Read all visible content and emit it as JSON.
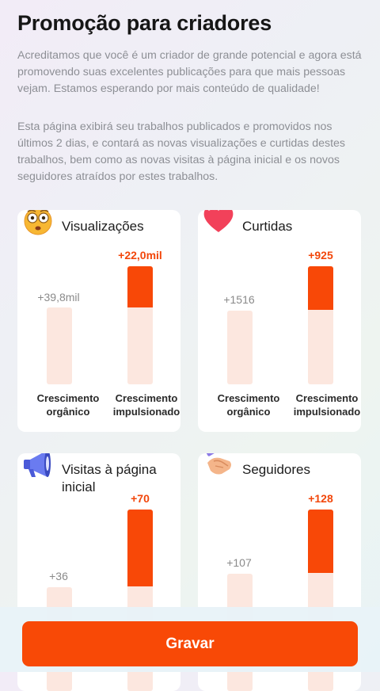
{
  "page": {
    "title": "Promoção para criadores",
    "intro": "Acreditamos que você é um criador de grande potencial e agora está promovendo suas excelentes publicações para que mais pessoas vejam. Estamos esperando por mais conteúdo de qualidade!",
    "description": "Esta página exibirá seu trabalhos publicados e promovidos nos últimos 2 dias, e contará as novas visualizações e curtidas destes trabalhos, bem como as novas visitas à página inicial e os novos seguidores atraídos por estes trabalhos."
  },
  "labels": {
    "organic": "Crescimento orgânico",
    "boosted": "Crescimento impulsionado"
  },
  "stats": [
    {
      "title": "Visualizações",
      "icon": "surprised-face-icon",
      "organic_value": "+39,8mil",
      "boosted_value": "+22,0mil"
    },
    {
      "title": "Curtidas",
      "icon": "heart-icon",
      "organic_value": "+1516",
      "boosted_value": "+925"
    },
    {
      "title": "Visitas à página inicial",
      "icon": "megaphone-icon",
      "organic_value": "+36",
      "boosted_value": "+70"
    },
    {
      "title": "Seguidores",
      "icon": "handshake-icon",
      "organic_value": "+107",
      "boosted_value": "+128"
    }
  ],
  "footer": {
    "record_label": "Gravar"
  },
  "colors": {
    "accent": "#f84807",
    "bar_light": "#fce7df"
  }
}
